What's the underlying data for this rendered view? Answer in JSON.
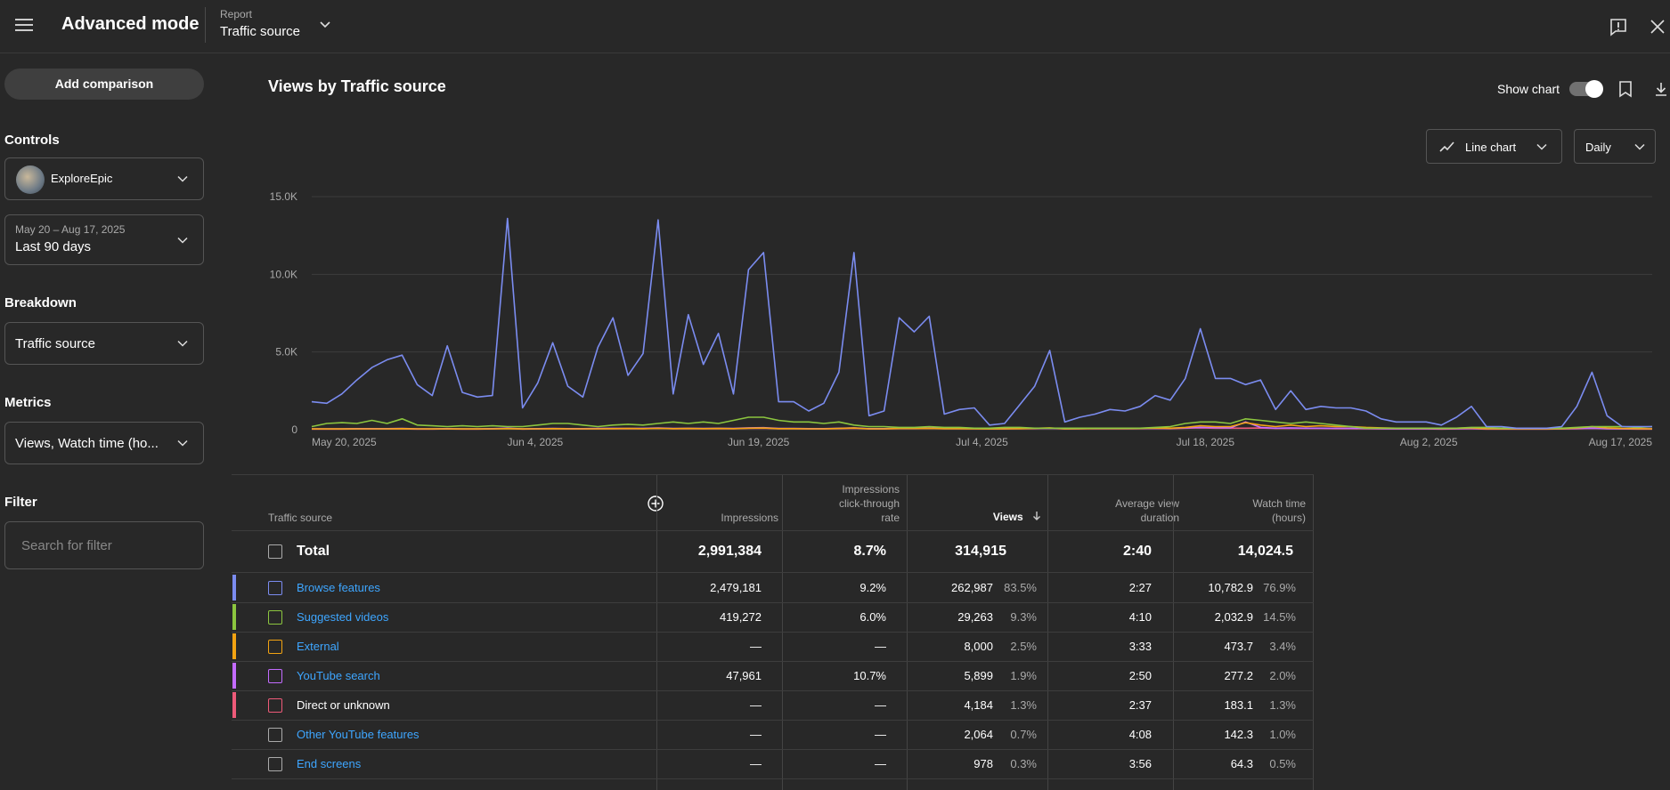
{
  "header": {
    "app_title": "Advanced mode",
    "report_label": "Report",
    "report_value": "Traffic source"
  },
  "sidebar": {
    "add_comparison": "Add comparison",
    "controls_heading": "Controls",
    "channel_name": "ExploreEpic",
    "date_range_small": "May 20 – Aug 17, 2025",
    "date_range_label": "Last 90 days",
    "breakdown_heading": "Breakdown",
    "breakdown_value": "Traffic source",
    "metrics_heading": "Metrics",
    "metrics_value": "Views, Watch time (ho...",
    "filter_heading": "Filter",
    "filter_placeholder": "Search for filter"
  },
  "main": {
    "chart_title": "Views by Traffic source",
    "show_chart_label": "Show chart",
    "show_chart_on": true,
    "chart_type_label": "Line chart",
    "granularity_label": "Daily"
  },
  "chart_data": {
    "type": "line",
    "title": "Views by Traffic source",
    "xlabel": "",
    "ylabel": "",
    "ylim": [
      0,
      15000
    ],
    "y_ticks": [
      "0",
      "5.0K",
      "10.0K",
      "15.0K"
    ],
    "x_ticks": [
      "May 20, 2025",
      "Jun 4, 2025",
      "Jun 19, 2025",
      "Jul 4, 2025",
      "Jul 18, 2025",
      "Aug 2, 2025",
      "Aug 17, 2025"
    ],
    "x_start": "2025-05-20",
    "x_end": "2025-08-17",
    "grid": true,
    "series": [
      {
        "name": "Browse features",
        "color": "#7b8cf0",
        "values": [
          1800,
          1700,
          2300,
          3200,
          4000,
          4500,
          4800,
          2900,
          2200,
          5400,
          2400,
          2100,
          2200,
          13600,
          1400,
          3000,
          5600,
          2800,
          2100,
          5300,
          7200,
          3500,
          4900,
          13500,
          2300,
          7400,
          4200,
          6200,
          2300,
          10300,
          11400,
          1800,
          1800,
          1200,
          1700,
          3700,
          11400,
          900,
          1200,
          7200,
          6300,
          7300,
          1000,
          1300,
          1400,
          300,
          400,
          1600,
          2800,
          5100,
          500,
          800,
          1000,
          1300,
          1200,
          1500,
          2200,
          1900,
          3300,
          6500,
          3300,
          3300,
          2900,
          3200,
          1300,
          2500,
          1300,
          1500,
          1400,
          1400,
          1200,
          700,
          500,
          500,
          500,
          300,
          800,
          1500,
          200,
          200,
          100,
          100,
          100,
          200,
          1500,
          3700,
          900,
          200,
          200,
          200
        ]
      },
      {
        "name": "Suggested videos",
        "color": "#8cc63f",
        "values": [
          200,
          400,
          450,
          400,
          600,
          400,
          700,
          300,
          250,
          200,
          250,
          200,
          250,
          200,
          200,
          300,
          400,
          400,
          300,
          200,
          300,
          350,
          300,
          400,
          500,
          400,
          500,
          400,
          600,
          800,
          800,
          600,
          500,
          500,
          400,
          500,
          300,
          200,
          200,
          150,
          150,
          200,
          150,
          150,
          100,
          100,
          150,
          150,
          100,
          100,
          100,
          100,
          100,
          100,
          100,
          100,
          150,
          200,
          400,
          500,
          500,
          400,
          700,
          600,
          500,
          400,
          500,
          400,
          300,
          200,
          100,
          100,
          100,
          100,
          100,
          100,
          100,
          150,
          150,
          100,
          100,
          100,
          100,
          100,
          150,
          200,
          200,
          200,
          150,
          200
        ]
      },
      {
        "name": "External",
        "color": "#f2a312",
        "values": [
          50,
          50,
          50,
          60,
          60,
          60,
          70,
          60,
          50,
          60,
          50,
          50,
          60,
          70,
          50,
          60,
          70,
          60,
          60,
          60,
          70,
          80,
          70,
          90,
          70,
          80,
          70,
          80,
          70,
          100,
          110,
          70,
          70,
          60,
          60,
          80,
          110,
          60,
          60,
          80,
          80,
          90,
          70,
          70,
          60,
          50,
          60,
          70,
          90,
          120,
          60,
          70,
          80,
          80,
          80,
          90,
          110,
          100,
          150,
          250,
          200,
          200,
          450,
          300,
          200,
          300,
          200,
          250,
          200,
          200,
          150,
          120,
          100,
          100,
          100,
          90,
          100,
          120,
          70,
          60,
          60,
          60,
          60,
          70,
          120,
          200,
          120,
          80,
          70,
          60
        ]
      },
      {
        "name": "YouTube search",
        "color": "#c36bff",
        "values": [
          60,
          60,
          60,
          70,
          70,
          70,
          80,
          60,
          60,
          70,
          60,
          60,
          70,
          100,
          60,
          70,
          80,
          70,
          70,
          80,
          90,
          80,
          90,
          110,
          80,
          90,
          80,
          90,
          80,
          120,
          130,
          80,
          80,
          70,
          70,
          90,
          120,
          70,
          70,
          100,
          100,
          110,
          80,
          80,
          80,
          60,
          70,
          80,
          90,
          100,
          60,
          70,
          80,
          80,
          80,
          90,
          90,
          90,
          120,
          150,
          130,
          120,
          500,
          150,
          100,
          120,
          100,
          100,
          90,
          90,
          80,
          70,
          60,
          60,
          60,
          60,
          70,
          80,
          60,
          60,
          60,
          60,
          60,
          60,
          80,
          100,
          70,
          60,
          60,
          60
        ]
      },
      {
        "name": "Direct or unknown",
        "color": "#ee5a79",
        "values": [
          40,
          40,
          40,
          50,
          50,
          50,
          50,
          40,
          40,
          50,
          40,
          40,
          50,
          80,
          40,
          50,
          60,
          50,
          50,
          60,
          60,
          60,
          60,
          90,
          60,
          70,
          60,
          70,
          60,
          90,
          100,
          60,
          60,
          50,
          50,
          70,
          90,
          50,
          50,
          70,
          70,
          80,
          60,
          60,
          60,
          50,
          50,
          60,
          70,
          90,
          50,
          60,
          60,
          60,
          60,
          70,
          80,
          70,
          100,
          120,
          100,
          100,
          100,
          110,
          80,
          90,
          80,
          80,
          70,
          70,
          60,
          50,
          50,
          50,
          50,
          40,
          50,
          60,
          40,
          40,
          40,
          40,
          40,
          50,
          60,
          90,
          60,
          50,
          40,
          40
        ]
      }
    ]
  },
  "table": {
    "headers": {
      "source": "Traffic source",
      "impressions": "Impressions",
      "ctr_line1": "Impressions",
      "ctr_line2": "click-through",
      "ctr_line3": "rate",
      "views": "Views",
      "avd_line1": "Average view",
      "avd_line2": "duration",
      "wt_line1": "Watch time",
      "wt_line2": "(hours)"
    },
    "total": {
      "label": "Total",
      "impressions": "2,991,384",
      "ctr": "8.7%",
      "views": "314,915",
      "avd": "2:40",
      "watch_time": "14,024.5"
    },
    "rows": [
      {
        "name": "Browse features",
        "link": true,
        "color": "#7b8cf0",
        "impressions": "2,479,181",
        "ctr": "9.2%",
        "views": "262,987",
        "views_pct": "83.5%",
        "avd": "2:27",
        "watch_time": "10,782.9",
        "wt_pct": "76.9%"
      },
      {
        "name": "Suggested videos",
        "link": true,
        "color": "#8cc63f",
        "impressions": "419,272",
        "ctr": "6.0%",
        "views": "29,263",
        "views_pct": "9.3%",
        "avd": "4:10",
        "watch_time": "2,032.9",
        "wt_pct": "14.5%"
      },
      {
        "name": "External",
        "link": true,
        "color": "#f2a312",
        "impressions": "—",
        "ctr": "—",
        "views": "8,000",
        "views_pct": "2.5%",
        "avd": "3:33",
        "watch_time": "473.7",
        "wt_pct": "3.4%"
      },
      {
        "name": "YouTube search",
        "link": true,
        "color": "#c36bff",
        "impressions": "47,961",
        "ctr": "10.7%",
        "views": "5,899",
        "views_pct": "1.9%",
        "avd": "2:50",
        "watch_time": "277.2",
        "wt_pct": "2.0%"
      },
      {
        "name": "Direct or unknown",
        "link": false,
        "color": "#ee5a79",
        "impressions": "—",
        "ctr": "—",
        "views": "4,184",
        "views_pct": "1.3%",
        "avd": "2:37",
        "watch_time": "183.1",
        "wt_pct": "1.3%"
      },
      {
        "name": "Other YouTube features",
        "link": true,
        "color": "",
        "impressions": "—",
        "ctr": "—",
        "views": "2,064",
        "views_pct": "0.7%",
        "avd": "4:08",
        "watch_time": "142.3",
        "wt_pct": "1.0%"
      },
      {
        "name": "End screens",
        "link": true,
        "color": "",
        "impressions": "—",
        "ctr": "—",
        "views": "978",
        "views_pct": "0.3%",
        "avd": "3:56",
        "watch_time": "64.3",
        "wt_pct": "0.5%"
      }
    ]
  }
}
